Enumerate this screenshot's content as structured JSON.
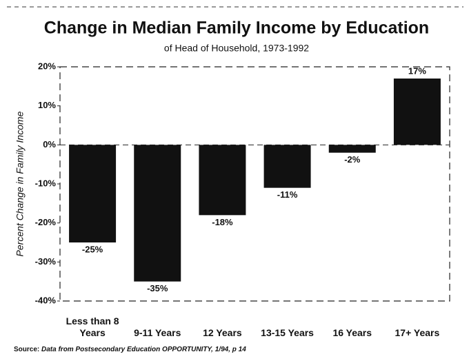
{
  "chart_data": {
    "type": "bar",
    "title": "Change in Median Family Income by Education",
    "subtitle": "of Head of Household, 1973-1992",
    "y_label": "Percent Change in Family Income",
    "categories": [
      "Less than 8 Years",
      "9-11 Years",
      "12 Years",
      "13-15 Years",
      "16 Years",
      "17+ Years"
    ],
    "values": [
      -25,
      -35,
      -18,
      -11,
      -2,
      17
    ],
    "value_labels": [
      "-25%",
      "-35%",
      "-18%",
      "-11%",
      "-2%",
      "17%"
    ],
    "color": "#111111",
    "ylim": [
      -40,
      20
    ],
    "yticks": [
      {
        "value": 20,
        "label": "20%"
      },
      {
        "value": 10,
        "label": "10%"
      },
      {
        "value": 0,
        "label": "0%"
      },
      {
        "value": -10,
        "label": "-10%"
      },
      {
        "value": -20,
        "label": "-20%"
      },
      {
        "value": -30,
        "label": "-30%"
      },
      {
        "value": -40,
        "label": "-40%"
      }
    ],
    "source_label": "Source:",
    "source_text": "Data from Postsecondary Education OPPORTUNITY, 1/94, p 14"
  }
}
